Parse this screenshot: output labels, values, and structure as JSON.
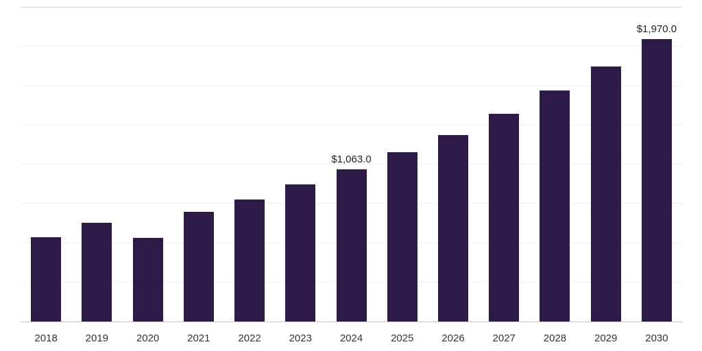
{
  "chart_data": {
    "type": "bar",
    "title": "",
    "xlabel": "",
    "ylabel": "",
    "categories": [
      "2018",
      "2019",
      "2020",
      "2021",
      "2022",
      "2023",
      "2024",
      "2025",
      "2026",
      "2027",
      "2028",
      "2029",
      "2030"
    ],
    "values": [
      590,
      690,
      585,
      765,
      850,
      955,
      1063,
      1180,
      1300,
      1450,
      1610,
      1780,
      1970
    ],
    "point_labels": [
      "",
      "",
      "",
      "",
      "",
      "",
      "$1,063.0",
      "",
      "",
      "",
      "",
      "",
      "$1,970.0"
    ],
    "ylim": [
      0,
      2200
    ],
    "grid": true,
    "grid_intervals": 8,
    "legend": false,
    "colors": {
      "bar": "#2e1a47",
      "gridline": "#efefef",
      "axis_line": "#c8c8c8",
      "x_label": "#333333",
      "value_label": "#222222"
    }
  }
}
